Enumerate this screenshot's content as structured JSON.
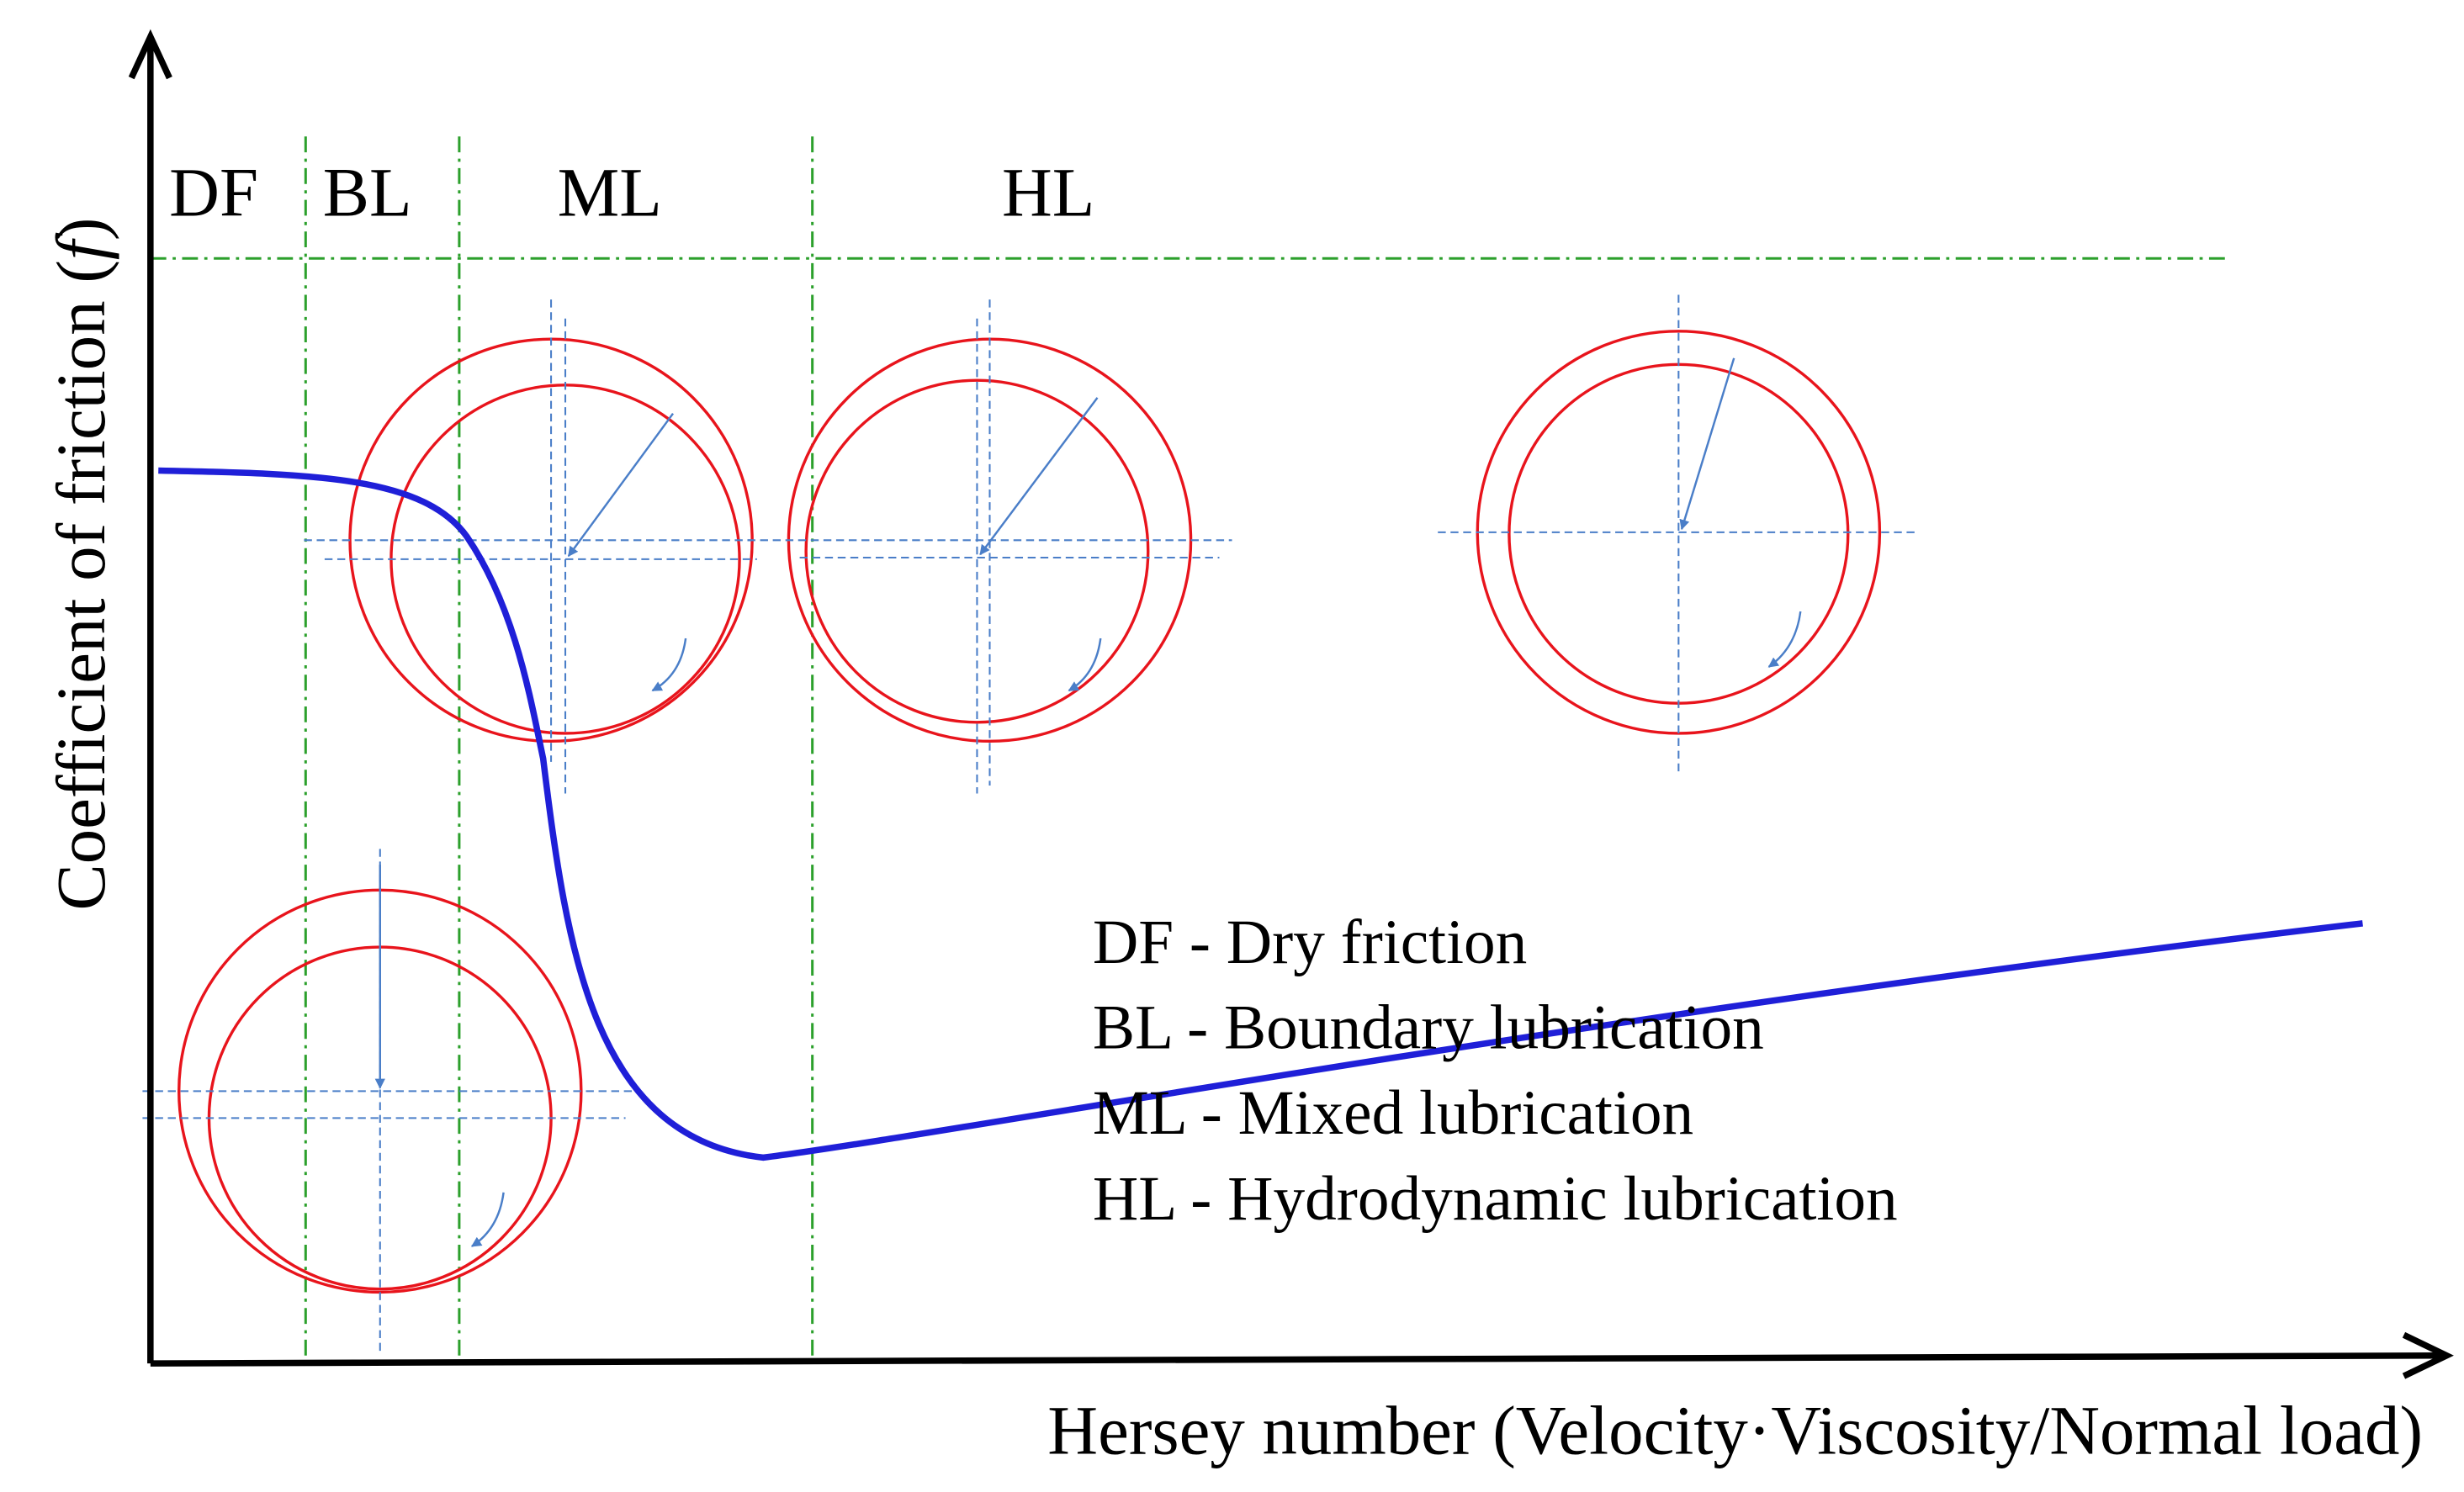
{
  "regions": [
    {
      "label": "DF"
    },
    {
      "label": "BL"
    },
    {
      "label": "ML"
    },
    {
      "label": "HL"
    }
  ],
  "axes": {
    "y_label": {
      "before": "Coefficient of friction (",
      "symbol": "f",
      "after": ")"
    },
    "x_label": "Hersey number (Velocity·Viscosity/Normal load)"
  },
  "legend": [
    "DF - Dry friction",
    "BL - Boundary lubrication",
    "ML - Mixed lubrication",
    "HL - Hydrodynamic lubrication"
  ]
}
